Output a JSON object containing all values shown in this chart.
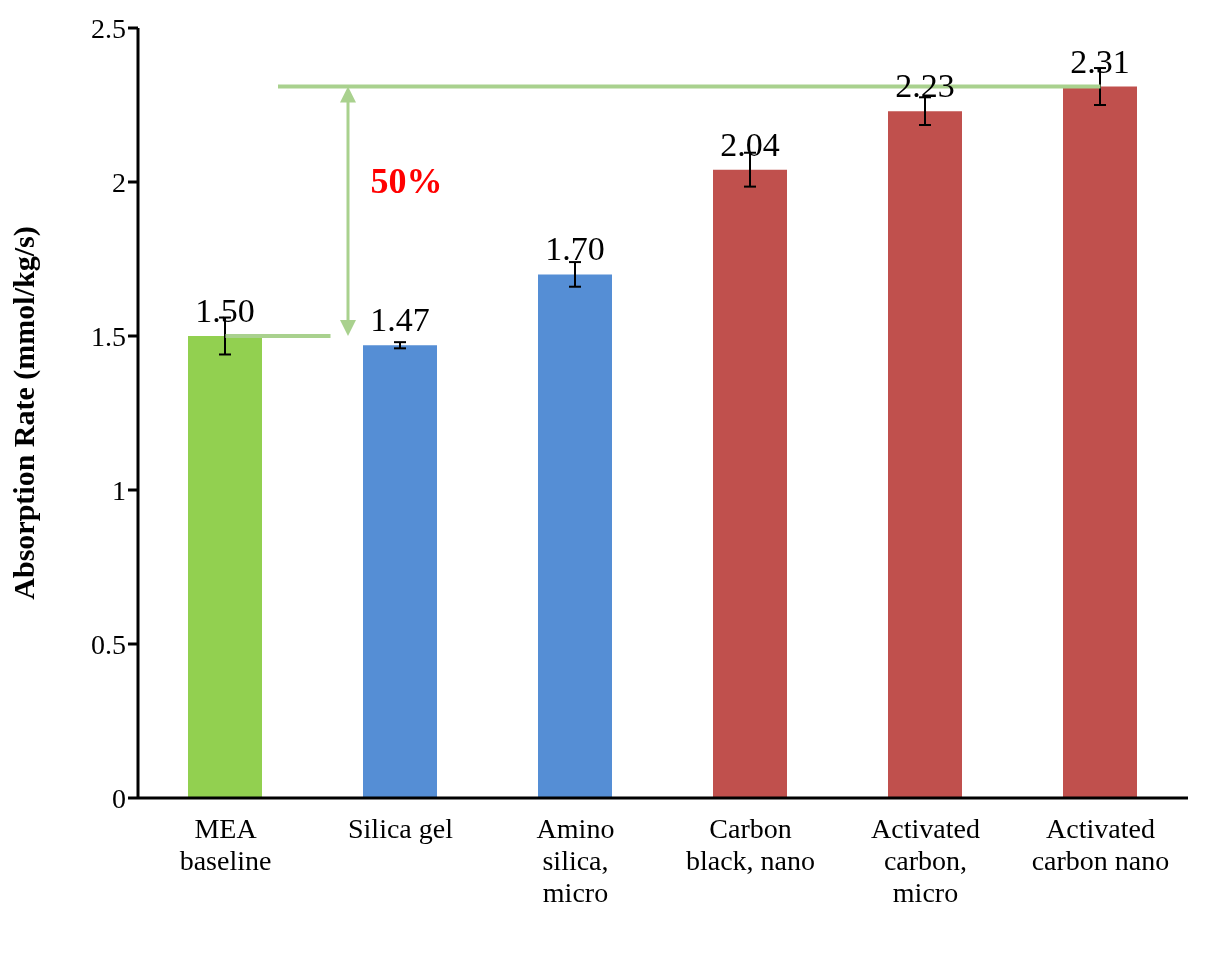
{
  "chart_data": {
    "type": "bar",
    "ylabel": "Absorption Rate (mmol/kg/s)",
    "categories": [
      "MEA baseline",
      "Silica gel",
      "Amino silica, micro",
      "Carbon black, nano",
      "Activated carbon, micro",
      "Activated carbon nano"
    ],
    "values": [
      1.5,
      1.47,
      1.7,
      2.04,
      2.23,
      2.31
    ],
    "colors": [
      "#92d050",
      "#558ed5",
      "#558ed5",
      "#c0504d",
      "#c0504d",
      "#c0504d"
    ],
    "errors": [
      0.06,
      0.01,
      0.04,
      0.055,
      0.045,
      0.06
    ],
    "value_labels": [
      "1.50",
      "1.47",
      "1.70",
      "2.04",
      "2.23",
      "2.31"
    ],
    "ylim": [
      0,
      2.5
    ],
    "yticks": [
      0,
      0.5,
      1,
      1.5,
      2,
      2.5
    ],
    "ref_lines": [
      {
        "axis": "y",
        "value": 1.5,
        "label": null,
        "color": "#a9d18e"
      },
      {
        "axis": "y",
        "value": 2.31,
        "label": null,
        "color": "#a9d18e"
      }
    ],
    "annotations": [
      "50%"
    ]
  }
}
